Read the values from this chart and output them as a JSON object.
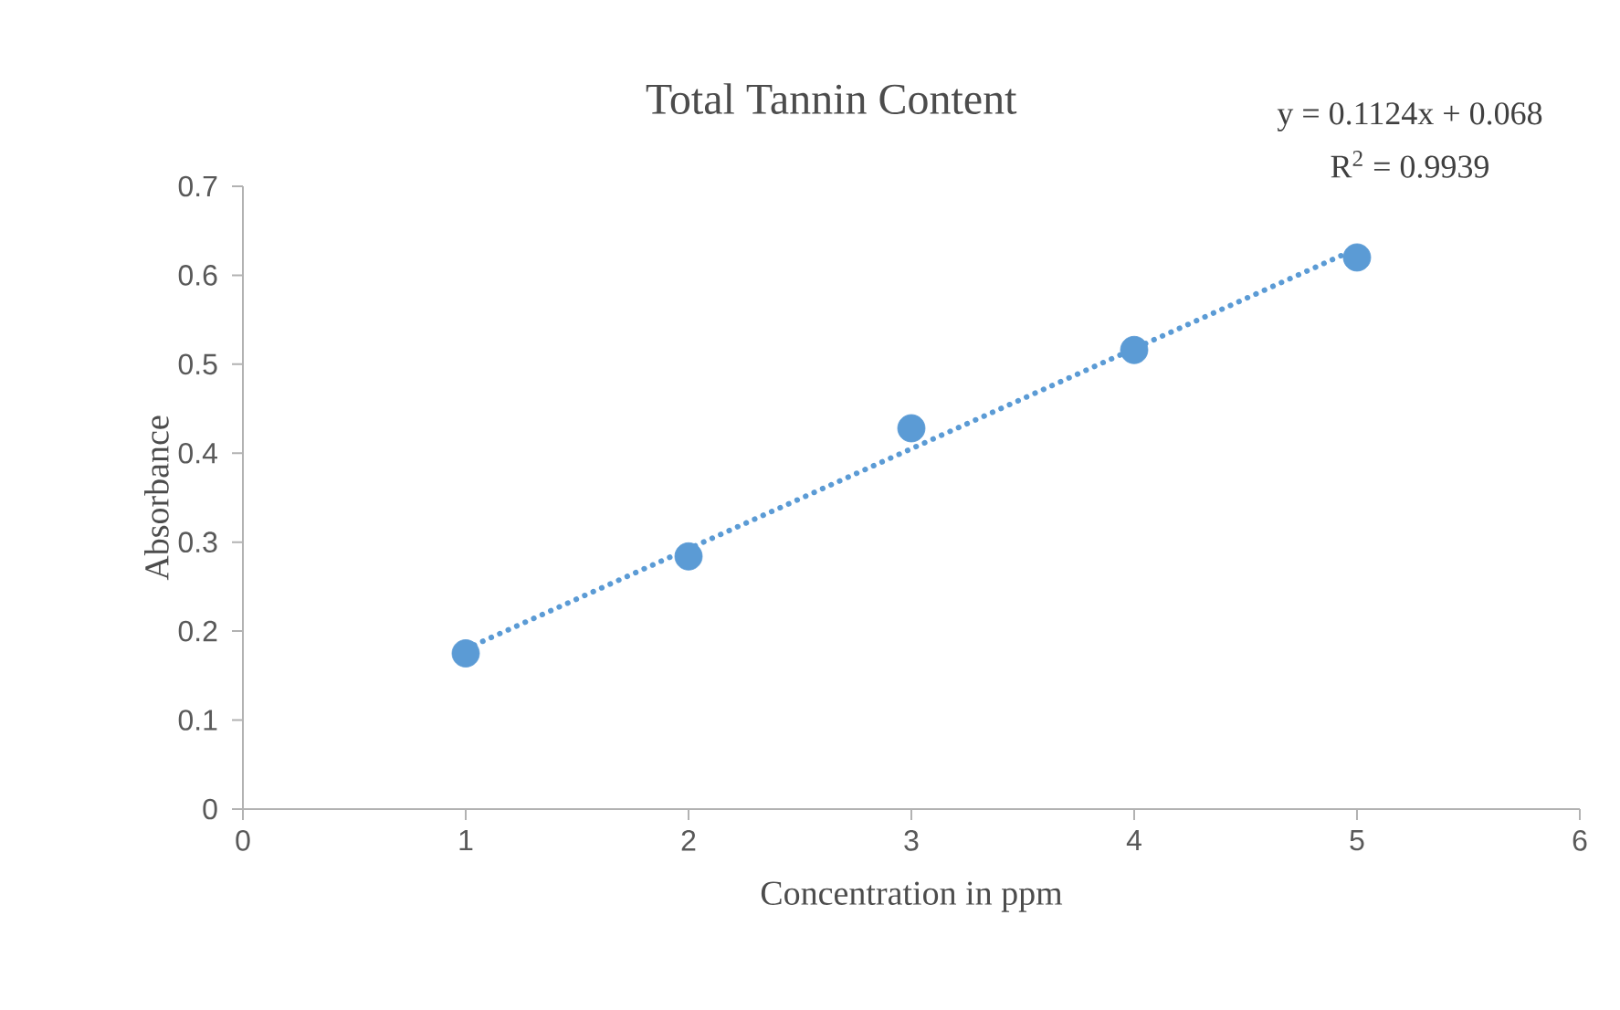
{
  "chart_data": {
    "type": "scatter",
    "title": "Total Tannin Content",
    "xlabel": "Concentration in ppm",
    "ylabel": "Absorbance",
    "annotations": [
      "y = 0.1124x + 0.068",
      "R$^{2}$ = 0.9939"
    ],
    "xlim": [
      0,
      6
    ],
    "ylim": [
      0,
      0.7
    ],
    "xticks": [
      0,
      1,
      2,
      3,
      4,
      5,
      6
    ],
    "yticks": [
      0,
      0.1,
      0.2,
      0.3,
      0.4,
      0.5,
      0.6,
      0.7
    ],
    "series": [
      {
        "color": "#5b9bd5",
        "marker": "circle",
        "x": [
          1,
          2,
          3,
          4,
          5
        ],
        "values": [
          0.175,
          0.284,
          0.428,
          0.516,
          0.62
        ]
      },
      {
        "type": "line",
        "color": "#5b9bd5",
        "line_style": "dotted",
        "marker": "none",
        "x": [
          1,
          5
        ],
        "values": [
          0.18,
          0.63
        ]
      }
    ]
  }
}
